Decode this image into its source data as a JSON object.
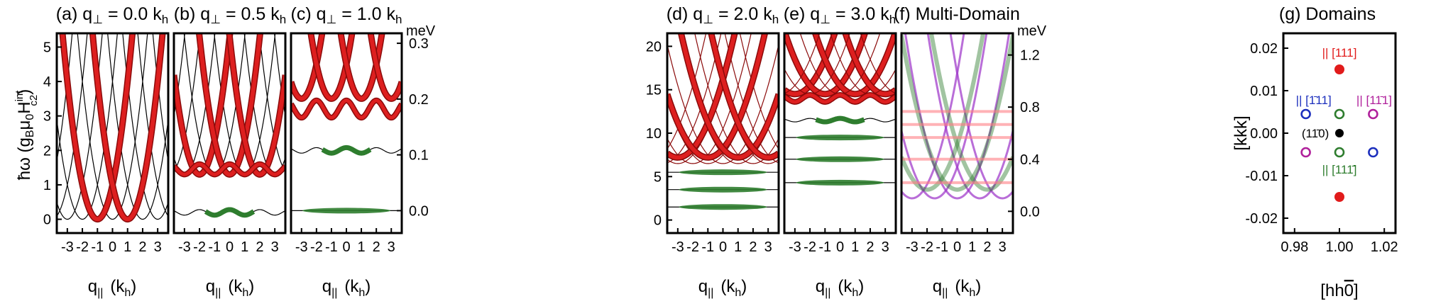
{
  "figure": {
    "colors": {
      "red_band": "#dd1f1f",
      "dark_band": "#8b0a0a",
      "green_band": "#2e7d2e",
      "purple_band": "#9b30c8",
      "pink_line": "#ff7f86",
      "blue_marker": "#1c2fbd",
      "magenta_marker": "#b0209b",
      "black": "#000000"
    },
    "shared_xlabel": "q|| (kh)",
    "xlabel_text": "q",
    "xlabel_sub": "||",
    "xlabel_unit_open": "(k",
    "xlabel_unit_sub": "h",
    "xlabel_unit_close": ")",
    "ylabel_left_prefix": "ħω (g",
    "ylabel_left_sub1": "B",
    "ylabel_left_mid": "μ",
    "ylabel_left_sub2": "0",
    "ylabel_left_H": "H",
    "ylabel_left_sup": "int",
    "ylabel_left_sub3": "c2",
    "ylabel_left_close": ")",
    "mev_label": "meV"
  },
  "chart_data": [
    {
      "type": "line",
      "panel": "a",
      "title": "(a) q⊥ = 0.0 kh",
      "title_main": "(a) q",
      "title_sub": "⊥",
      "title_rest": " = 0.0 k",
      "title_unit_sub": "h",
      "x_ticks": [
        "-3",
        "-2",
        "-1",
        "0",
        "1",
        "2",
        "3"
      ],
      "y_ticks": [
        "0",
        "1",
        "2",
        "3",
        "4",
        "5"
      ],
      "xlim": [
        -3.7,
        3.7
      ],
      "ylim": [
        -0.4,
        5.4
      ],
      "series": [
        {
          "style": "thin-black",
          "parabola_centers": [
            -6,
            -5,
            -4,
            -3,
            -2,
            -1,
            0,
            1,
            2,
            3,
            4,
            5,
            6
          ],
          "curvature": 1.0,
          "offset": 0.0
        },
        {
          "style": "thick-red",
          "parabola_centers": [
            -1,
            1
          ],
          "curvature": 1.0,
          "offset": 0.0
        }
      ]
    },
    {
      "type": "line",
      "panel": "b",
      "title": "(b) q⊥ = 0.5 kh",
      "title_main": "(b) q",
      "title_sub": "⊥",
      "title_rest": " = 0.5 k",
      "title_unit_sub": "h",
      "x_ticks": [
        "-3",
        "-2",
        "-1",
        "0",
        "1",
        "2",
        "3"
      ],
      "xlim": [
        -3.7,
        3.7
      ],
      "ylim": [
        -0.4,
        5.4
      ],
      "series": [
        {
          "style": "thin-black",
          "parabola_centers": [
            -5,
            -4,
            -3,
            -2,
            -1,
            0,
            1,
            2,
            3,
            4,
            5
          ],
          "curvature": 1.0,
          "offset": 1.3
        },
        {
          "style": "thick-red",
          "parabola_centers": [
            -2,
            0,
            2
          ],
          "curvature": 1.0,
          "offset": 1.3
        },
        {
          "style": "wavy-red",
          "level": 1.45,
          "amplitude": 0.15
        },
        {
          "style": "wavy-green",
          "level": 0.2,
          "amplitude": 0.08
        }
      ]
    },
    {
      "type": "line",
      "panel": "c",
      "title": "(c) q⊥ = 1.0 kh",
      "title_main": "(c) q",
      "title_sub": "⊥",
      "title_rest": " = 1.0 k",
      "title_unit_sub": "h",
      "x_ticks": [
        "-3",
        "-2",
        "-1",
        "0",
        "1",
        "2",
        "3"
      ],
      "right_ticks": [
        "0.0",
        "0.1",
        "0.2",
        "0.3"
      ],
      "right_unit": "meV",
      "xlim": [
        -3.7,
        3.7
      ],
      "ylim": [
        -0.4,
        5.4
      ],
      "series": [
        {
          "style": "thick-red",
          "parabola_centers": [
            -3,
            -1,
            1,
            3
          ],
          "curvature": 1.0,
          "offset": 3.5
        },
        {
          "style": "wavy-red",
          "level": 3.2,
          "amplitude": 0.25
        },
        {
          "style": "wavy-green",
          "level": 2.0,
          "amplitude": 0.08
        },
        {
          "style": "flat-green",
          "level": 0.25
        }
      ]
    },
    {
      "type": "line",
      "panel": "d",
      "title": "(d) q⊥ = 2.0 kh",
      "title_main": "(d) q",
      "title_sub": "⊥",
      "title_rest": " = 2.0 k",
      "title_unit_sub": "h",
      "x_ticks": [
        "-3",
        "-2",
        "-1",
        "0",
        "1",
        "2",
        "3"
      ],
      "y_ticks": [
        "0",
        "5",
        "10",
        "15",
        "20"
      ],
      "xlim": [
        -3.7,
        3.7
      ],
      "ylim": [
        -1.5,
        21.5
      ],
      "series": [
        {
          "style": "thin-dark",
          "parabola_centers": [
            -5,
            -4,
            -3,
            -2,
            -1,
            0,
            1,
            2,
            3,
            4,
            5
          ],
          "curvature": 1.0,
          "offset": 6.5
        },
        {
          "style": "thick-red",
          "parabola_centers": [
            -3,
            -1,
            1,
            3
          ],
          "curvature": 1.0,
          "offset": 7.2
        },
        {
          "style": "flat-green",
          "level": 5.5
        },
        {
          "style": "flat-green",
          "level": 3.5
        },
        {
          "style": "flat-green",
          "level": 1.5
        }
      ]
    },
    {
      "type": "line",
      "panel": "e",
      "title": "(e) q⊥ = 3.0 kh",
      "title_main": "(e) q",
      "title_sub": "⊥",
      "title_rest": " = 3.0 k",
      "title_unit_sub": "h",
      "x_ticks": [
        "-3",
        "-2",
        "-1",
        "0",
        "1",
        "2",
        "3"
      ],
      "xlim": [
        -3.7,
        3.7
      ],
      "ylim": [
        -1.5,
        21.5
      ],
      "series": [
        {
          "style": "thick-red",
          "parabola_centers": [
            -3,
            -1,
            1,
            3
          ],
          "curvature": 1.0,
          "offset": 14.5
        },
        {
          "style": "thin-dark",
          "parabola_centers": [
            -4,
            -2,
            0,
            2,
            4
          ],
          "curvature": 1.0,
          "offset": 14.5
        },
        {
          "style": "wavy-red",
          "level": 14.0,
          "amplitude": 0.4
        },
        {
          "style": "wavy-green",
          "level": 11.5,
          "amplitude": 0.2
        },
        {
          "style": "flat-green",
          "level": 9.5
        },
        {
          "style": "flat-green",
          "level": 7.0
        },
        {
          "style": "flat-green",
          "level": 4.3
        }
      ]
    },
    {
      "type": "line",
      "panel": "f",
      "title": "(f) Multi-Domain",
      "x_ticks": [
        "-3",
        "-2",
        "-1",
        "0",
        "1",
        "2",
        "3"
      ],
      "right_ticks": [
        "0.0",
        "0.4",
        "0.8",
        "1.2"
      ],
      "right_unit": "meV",
      "xlim": [
        -3.7,
        3.7
      ],
      "ylim": [
        -1.5,
        21.5
      ],
      "series": [
        {
          "style": "multi-purple",
          "parabola_centers": [
            -3,
            -1.5,
            0,
            1.5,
            3
          ]
        },
        {
          "style": "multi-green",
          "parabola_centers": [
            -2,
            0,
            2
          ]
        },
        {
          "style": "multi-pink",
          "levels": [
            4.3,
            7.0,
            9.5,
            11.0,
            12.5
          ]
        }
      ]
    },
    {
      "type": "scatter",
      "panel": "g",
      "title": "(g) Domains",
      "xlabel": "[hh̄0]",
      "xlabel_text": "[hh",
      "xlabel_bar": "0",
      "xlabel_close": "]",
      "ylabel": "[kkk]",
      "x_ticks": [
        "0.98",
        "1.00",
        "1.02"
      ],
      "y_ticks": [
        "-0.02",
        "-0.01",
        "0.00",
        "0.01",
        "0.02"
      ],
      "xlim": [
        0.975,
        1.025
      ],
      "ylim": [
        -0.0235,
        0.0235
      ],
      "points": [
        {
          "x": 1.0,
          "y": 0.015,
          "style": "filled",
          "color": "#e11b1b"
        },
        {
          "x": 1.0,
          "y": -0.015,
          "style": "filled",
          "color": "#e11b1b"
        },
        {
          "x": 1.0,
          "y": 0.0,
          "style": "filled",
          "color": "#000000"
        },
        {
          "x": 0.985,
          "y": 0.0045,
          "style": "open",
          "color": "#1c2fbd"
        },
        {
          "x": 1.0,
          "y": 0.0045,
          "style": "open",
          "color": "#2e7d2e"
        },
        {
          "x": 1.015,
          "y": 0.0045,
          "style": "open",
          "color": "#b0209b"
        },
        {
          "x": 0.985,
          "y": -0.0045,
          "style": "open",
          "color": "#b0209b"
        },
        {
          "x": 1.0,
          "y": -0.0045,
          "style": "open",
          "color": "#2e7d2e"
        },
        {
          "x": 1.015,
          "y": -0.0045,
          "style": "open",
          "color": "#1c2fbd"
        }
      ],
      "annotations": [
        {
          "text": "|| [111]",
          "color": "#e11b1b",
          "near": "top-red"
        },
        {
          "text": "|| [1̄11]",
          "color": "#1c2fbd",
          "near": "upper-left"
        },
        {
          "text": "|| [11̄1]",
          "color": "#b0209b",
          "near": "upper-right"
        },
        {
          "text": "(11̄0)",
          "color": "#000000",
          "near": "center"
        },
        {
          "text": "|| [111̄]",
          "color": "#2e7d2e",
          "near": "lower-center"
        }
      ]
    }
  ]
}
